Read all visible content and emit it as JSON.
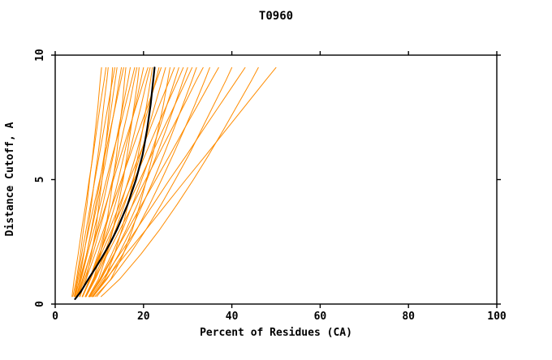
{
  "title": "T0960",
  "chart_data": {
    "type": "line",
    "title": "T0960",
    "xlabel": "Percent of Residues (CA)",
    "ylabel": "Distance Cutoff, A",
    "xlim": [
      0,
      100
    ],
    "ylim": [
      0,
      10
    ],
    "xticks": [
      0,
      20,
      40,
      60,
      80,
      100
    ],
    "yticks": [
      0,
      5,
      10
    ],
    "grid": false,
    "legend": "none",
    "colors": {
      "model_curves": "#FF8C00",
      "reference_curve": "#000000",
      "axis": "#000000",
      "background": "#FFFFFF"
    },
    "y_grid": [
      0.3,
      1,
      2,
      3,
      4,
      5,
      6,
      7,
      8,
      9,
      9.5
    ],
    "orange_series": [
      [
        4.0,
        4.8,
        5.7,
        6.4,
        7.2,
        7.8,
        8.5,
        9.1,
        9.7,
        10.2,
        10.5
      ],
      [
        3.8,
        4.3,
        5.2,
        6.0,
        6.9,
        7.7,
        8.6,
        9.4,
        10.2,
        11.1,
        11.5
      ],
      [
        4.6,
        5.5,
        6.5,
        7.4,
        8.2,
        8.9,
        9.7,
        10.4,
        11.0,
        11.7,
        12.0
      ],
      [
        5.5,
        7.0,
        8.2,
        9.2,
        9.9,
        10.6,
        11.2,
        11.8,
        12.3,
        12.8,
        13.0
      ],
      [
        4.3,
        5.0,
        6.0,
        7.0,
        8.0,
        9.0,
        10.0,
        11.0,
        12.0,
        13.0,
        13.5
      ],
      [
        4.8,
        5.8,
        7.1,
        8.2,
        9.2,
        10.2,
        11.1,
        12.0,
        12.8,
        13.6,
        14.0
      ],
      [
        4.4,
        5.6,
        7.1,
        8.3,
        9.5,
        10.6,
        11.7,
        12.6,
        13.6,
        14.5,
        15.0
      ],
      [
        4.4,
        5.2,
        6.4,
        7.6,
        8.8,
        10.1,
        11.3,
        12.5,
        13.7,
        14.9,
        15.5
      ],
      [
        6.9,
        8.7,
        10.2,
        11.4,
        12.3,
        13.1,
        13.9,
        14.5,
        15.2,
        15.7,
        16.0
      ],
      [
        5.0,
        6.4,
        8.0,
        9.5,
        10.8,
        12.0,
        13.2,
        14.3,
        15.4,
        16.5,
        17.0
      ],
      [
        4.9,
        5.9,
        7.3,
        8.8,
        10.2,
        11.6,
        13.0,
        14.5,
        15.9,
        17.3,
        18.0
      ],
      [
        5.1,
        6.7,
        8.5,
        10.1,
        11.6,
        13.0,
        14.3,
        15.5,
        16.8,
        17.9,
        18.5
      ],
      [
        7.6,
        9.8,
        11.7,
        13.1,
        14.3,
        15.4,
        16.3,
        17.1,
        17.9,
        18.7,
        19.0
      ],
      [
        6.1,
        7.8,
        9.7,
        11.3,
        12.9,
        14.3,
        15.6,
        16.9,
        18.2,
        19.4,
        20.0
      ],
      [
        5.0,
        6.2,
        8.0,
        9.7,
        11.5,
        13.2,
        14.9,
        16.7,
        18.4,
        20.1,
        21.0
      ],
      [
        6.2,
        8.0,
        10.1,
        11.9,
        13.6,
        15.2,
        16.7,
        18.1,
        19.5,
        20.8,
        21.5
      ],
      [
        8.6,
        11.2,
        13.4,
        15.1,
        16.5,
        17.7,
        18.8,
        19.8,
        20.7,
        21.6,
        22.0
      ],
      [
        6.9,
        8.8,
        11.1,
        13.1,
        14.9,
        16.6,
        18.3,
        19.8,
        21.3,
        22.8,
        23.5
      ],
      [
        5.6,
        7.0,
        9.0,
        11.0,
        13.0,
        15.0,
        17.0,
        19.0,
        21.0,
        23.0,
        24.0
      ],
      [
        7.0,
        9.1,
        11.6,
        13.7,
        15.7,
        17.6,
        19.3,
        21.0,
        22.6,
        24.2,
        25.0
      ],
      [
        9.4,
        12.6,
        15.4,
        17.5,
        19.2,
        20.7,
        22.1,
        23.3,
        24.5,
        25.5,
        26.0
      ],
      [
        6.2,
        7.8,
        10.0,
        12.3,
        14.6,
        16.8,
        19.1,
        21.4,
        23.6,
        25.9,
        27.0
      ],
      [
        7.7,
        10.1,
        12.8,
        15.3,
        17.5,
        19.6,
        21.6,
        23.5,
        25.3,
        27.1,
        28.0
      ],
      [
        6.2,
        8.0,
        10.4,
        12.9,
        15.4,
        17.9,
        20.4,
        22.8,
        25.3,
        27.8,
        29.0
      ],
      [
        7.8,
        10.4,
        13.4,
        16.1,
        18.6,
        20.8,
        23.0,
        25.1,
        27.1,
        29.0,
        30.0
      ],
      [
        6.8,
        8.6,
        11.3,
        13.9,
        16.5,
        19.2,
        21.8,
        24.4,
        27.1,
        29.7,
        31.0
      ],
      [
        8.4,
        11.2,
        14.4,
        17.2,
        19.8,
        22.3,
        24.6,
        26.8,
        28.9,
        31.0,
        32.0
      ],
      [
        6.9,
        8.9,
        11.8,
        14.7,
        17.6,
        20.5,
        23.4,
        26.3,
        29.2,
        32.0,
        33.5
      ],
      [
        8.6,
        11.7,
        15.3,
        18.5,
        21.4,
        24.1,
        26.7,
        29.2,
        31.6,
        33.9,
        35.0
      ],
      [
        7.9,
        10.2,
        13.3,
        16.5,
        19.6,
        22.8,
        26.0,
        29.1,
        32.3,
        35.4,
        37.0
      ],
      [
        9.0,
        12.7,
        16.9,
        20.6,
        24.0,
        27.2,
        30.3,
        33.1,
        35.9,
        38.7,
        40.0
      ],
      [
        8.1,
        10.8,
        14.6,
        18.4,
        22.2,
        25.9,
        29.8,
        33.5,
        37.3,
        41.1,
        43.0
      ],
      [
        10.4,
        14.6,
        19.4,
        23.7,
        27.6,
        31.3,
        34.8,
        38.1,
        41.3,
        44.5,
        46.0
      ],
      [
        8.4,
        11.5,
        16.0,
        20.6,
        25.1,
        29.6,
        34.2,
        38.7,
        43.2,
        47.7,
        50.0
      ]
    ],
    "black_series": {
      "x": [
        4.5,
        5.8,
        7.5,
        9.3,
        11.0,
        12.6,
        14.0,
        16.4,
        18.3,
        19.8,
        20.8,
        21.6,
        22.2,
        22.5
      ],
      "y": [
        0.2,
        0.5,
        1,
        1.5,
        2,
        2.5,
        3,
        4,
        5,
        6,
        7,
        8,
        9,
        9.5
      ]
    }
  }
}
